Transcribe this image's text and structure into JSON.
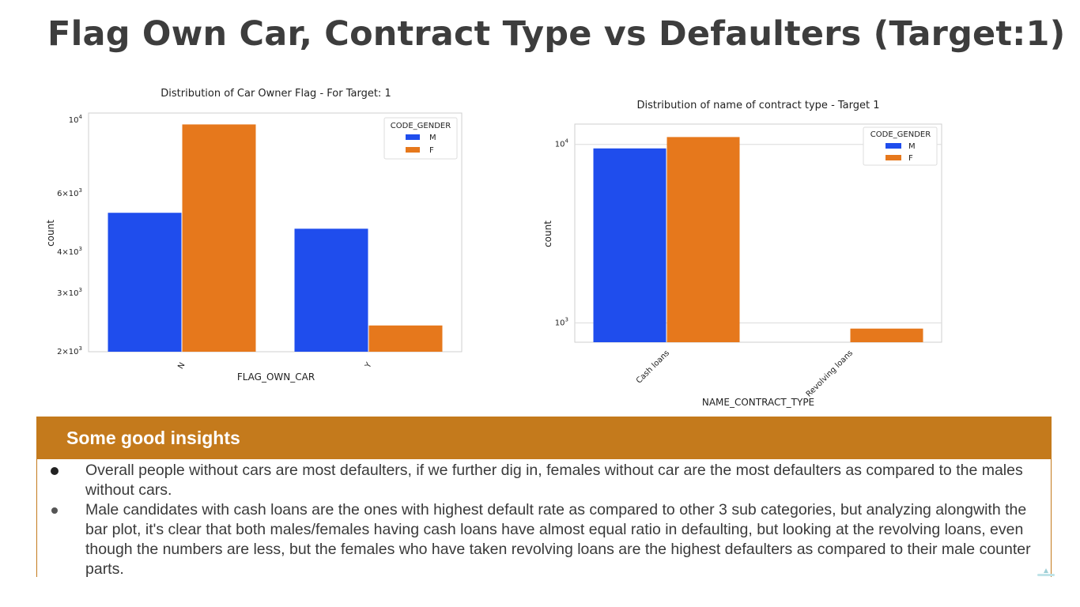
{
  "page": {
    "title": "Flag Own Car, Contract Type vs Defaulters (Target:1)"
  },
  "colors": {
    "male": "#1f4ded",
    "female": "#e6781c",
    "insight_band": "#c47a1c"
  },
  "chart_data": [
    {
      "type": "bar",
      "title": "Distribution of Car Owner Flag - For Target: 1",
      "xlabel": "FLAG_OWN_CAR",
      "ylabel": "count",
      "categories": [
        "N",
        "Y"
      ],
      "yscale": "log",
      "ylim": [
        2000,
        10500
      ],
      "yticks": [
        {
          "value": 2000,
          "base": "2×10",
          "exp": "3"
        },
        {
          "value": 3000,
          "base": "3×10",
          "exp": "3"
        },
        {
          "value": 4000,
          "base": "4×10",
          "exp": "3"
        },
        {
          "value": 6000,
          "base": "6×10",
          "exp": "3"
        },
        {
          "value": 10000,
          "base": "10",
          "exp": "4"
        }
      ],
      "legend": {
        "title": "CODE_GENDER",
        "position": "top-right"
      },
      "series": [
        {
          "name": "M",
          "values": [
            5250,
            4700
          ]
        },
        {
          "name": "F",
          "values": [
            9700,
            2400
          ]
        }
      ],
      "grid": false
    },
    {
      "type": "bar",
      "title": "Distribution of name of contract type - Target 1",
      "xlabel": "NAME_CONTRACT_TYPE",
      "ylabel": "count",
      "categories": [
        "Cash loans",
        "Revolving loans"
      ],
      "yscale": "log",
      "ylim": [
        780,
        13000
      ],
      "yticks": [
        {
          "value": 1000,
          "base": "10",
          "exp": "3"
        },
        {
          "value": 10000,
          "base": "10",
          "exp": "4"
        }
      ],
      "legend": {
        "title": "CODE_GENDER",
        "position": "top-right"
      },
      "series": [
        {
          "name": "M",
          "values": [
            9500,
            0
          ]
        },
        {
          "name": "F",
          "values": [
            11000,
            930
          ]
        }
      ],
      "grid": true
    }
  ],
  "insights": {
    "title": "Some good insights",
    "items": [
      "Overall people without cars are most defaulters, if we further dig in, females without car are the most defaulters as compared to the males without cars.",
      "Male candidates with cash loans are the ones with highest default rate as compared to other 3 sub categories, but analyzing alongwith the bar plot, it's clear that both males/females having cash loans have almost equal ratio in defaulting, but looking at the revolving loans, even though the numbers are less, but the females who have taken revolving loans are the highest defaulters as compared to their male counter parts."
    ]
  }
}
